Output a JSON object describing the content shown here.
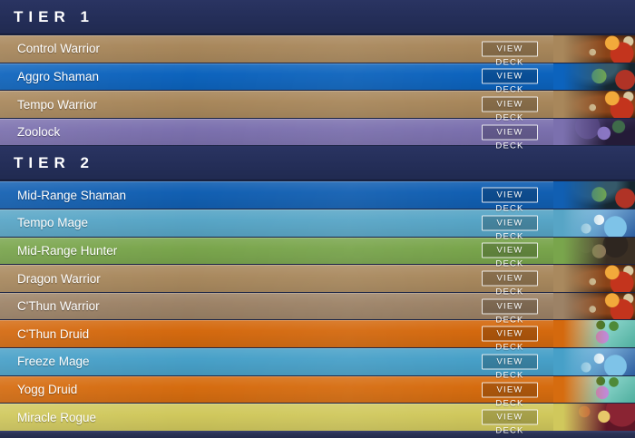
{
  "button_label": "VIEW DECK",
  "colors": {
    "header_bg": "#242e58",
    "separator": "#1b2444",
    "footer_bg": "#2a3254",
    "text": "#ffffff"
  },
  "sections": [
    {
      "label": "TIER 1",
      "rows": [
        {
          "label": "Control Warrior",
          "hero": "warrior",
          "color": "#a8875b"
        },
        {
          "label": "Aggro Shaman",
          "hero": "shaman",
          "color": "#0c63bd"
        },
        {
          "label": "Tempo Warrior",
          "hero": "warrior",
          "color": "#a8875b"
        },
        {
          "label": "Zoolock",
          "hero": "warlock",
          "color": "#7b70ae"
        }
      ]
    },
    {
      "label": "TIER 2",
      "rows": [
        {
          "label": "Mid-Range Shaman",
          "hero": "shaman",
          "color": "#115fb2"
        },
        {
          "label": "Tempo Mage",
          "hero": "mage",
          "color": "#57a5c6"
        },
        {
          "label": "Mid-Range Hunter",
          "hero": "hunter",
          "color": "#79a54c"
        },
        {
          "label": "Dragon Warrior",
          "hero": "warrior",
          "color": "#a9895e"
        },
        {
          "label": "C'Thun Warrior",
          "hero": "warrior",
          "color": "#9c8266"
        },
        {
          "label": "C'Thun Druid",
          "hero": "druid",
          "color": "#d4690e"
        },
        {
          "label": "Freeze Mage",
          "hero": "mage",
          "color": "#47a0c8"
        },
        {
          "label": "Yogg Druid",
          "hero": "druid",
          "color": "#d66c0f"
        },
        {
          "label": "Miracle Rogue",
          "hero": "rogue",
          "color": "#d0c85c"
        }
      ]
    }
  ]
}
